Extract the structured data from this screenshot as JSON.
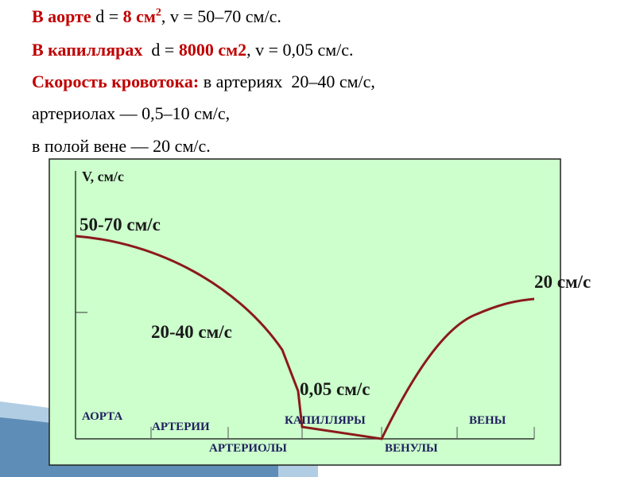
{
  "text_lines": [
    [
      "В аорте",
      " d = ",
      "8 см",
      "2",
      ", v = 50–70 см/с."
    ],
    [
      "В капиллярах",
      "  d = ",
      "8000 см2",
      ", v = 0,05 см/с."
    ],
    [
      "Скорость кровотока:",
      " в артериях  20–40 см/с,"
    ],
    [
      "артериолах — 0,5–10 см/с,"
    ],
    [
      "в полой вене — 20 см/с."
    ]
  ],
  "diagram": {
    "axis_label": "V, см/с",
    "speed_labels": [
      "50-70 см/с",
      "20-40 см/с",
      "0,05 см/с",
      "20 см/с"
    ],
    "sections": [
      "АОРТА",
      "АРТЕРИИ",
      "АРТЕРИОЛЫ",
      "КАПИЛЛЯРЫ",
      "ВЕНУЛЫ",
      "ВЕНЫ"
    ]
  }
}
